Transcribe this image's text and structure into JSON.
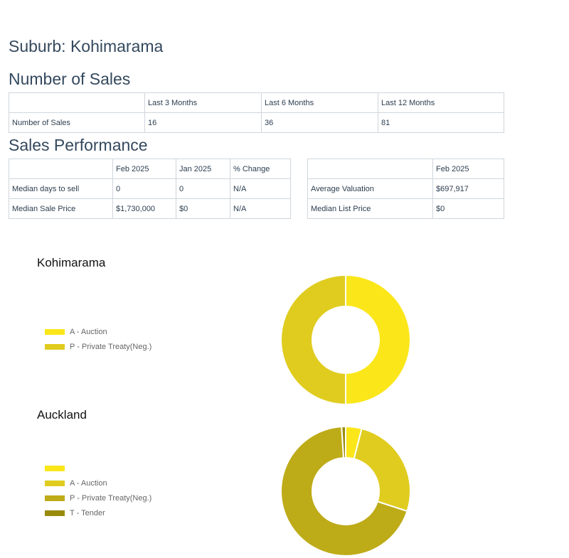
{
  "suburb_heading": "Suburb: Kohimarama",
  "number_of_sales": {
    "heading": "Number of Sales",
    "headers": [
      "",
      "Last 3 Months",
      "Last 6 Months",
      "Last 12 Months"
    ],
    "rows": [
      [
        "Number of Sales",
        "16",
        "36",
        "81"
      ]
    ]
  },
  "sales_performance": {
    "heading": "Sales Performance",
    "table_left": {
      "headers": [
        "",
        "Feb 2025",
        "Jan 2025",
        "% Change"
      ],
      "rows": [
        [
          "Median days to sell",
          "0",
          "0",
          "N/A"
        ],
        [
          "Median Sale Price",
          "$1,730,000",
          "$0",
          "N/A"
        ]
      ]
    },
    "table_right": {
      "headers": [
        "",
        "Feb 2025"
      ],
      "rows": [
        [
          "Average Valuation",
          "$697,917"
        ],
        [
          "Median List Price",
          "$0"
        ]
      ]
    }
  },
  "chart_data": [
    {
      "type": "pie",
      "title": "Kohimarama",
      "legend_position": "left",
      "categories": [
        "A - Auction",
        "P - Private Treaty(Neg.)"
      ],
      "values": [
        50,
        50
      ],
      "colors": [
        "#fbe61a",
        "#e0cc1f"
      ]
    },
    {
      "type": "pie",
      "title": "Auckland",
      "legend_position": "left",
      "categories": [
        "",
        "A - Auction",
        "P - Private Treaty(Neg.)",
        "T - Tender"
      ],
      "values": [
        4,
        26,
        69,
        1
      ],
      "colors": [
        "#fbe61a",
        "#e0cc1f",
        "#beab18",
        "#9a8a0c"
      ]
    }
  ]
}
